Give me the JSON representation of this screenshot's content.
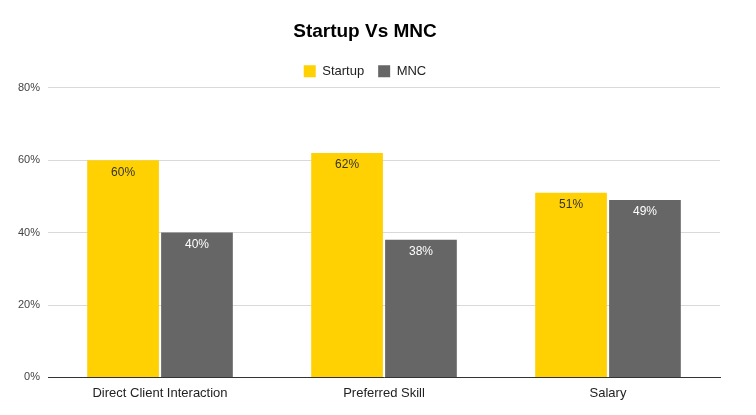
{
  "chart_data": {
    "type": "bar",
    "title": "Startup Vs MNC",
    "categories": [
      "Direct Client Interaction",
      "Preferred Skill",
      "Salary"
    ],
    "series": [
      {
        "name": "Startup",
        "color": "#ffd103",
        "values": [
          60,
          62,
          51
        ],
        "value_labels": [
          "60%",
          "62%",
          "51%"
        ]
      },
      {
        "name": "MNC",
        "color": "#666666",
        "values": [
          40,
          38,
          49
        ],
        "value_labels": [
          "40%",
          "38%",
          "49%"
        ]
      }
    ],
    "ylim": [
      0,
      80
    ],
    "yticks": [
      {
        "value": 0,
        "label": "0%"
      },
      {
        "value": 20,
        "label": "20%"
      },
      {
        "value": 40,
        "label": "40%"
      },
      {
        "value": 60,
        "label": "60%"
      },
      {
        "value": 80,
        "label": "80%"
      }
    ],
    "grid": true,
    "legend": "top",
    "data_labels": true
  }
}
